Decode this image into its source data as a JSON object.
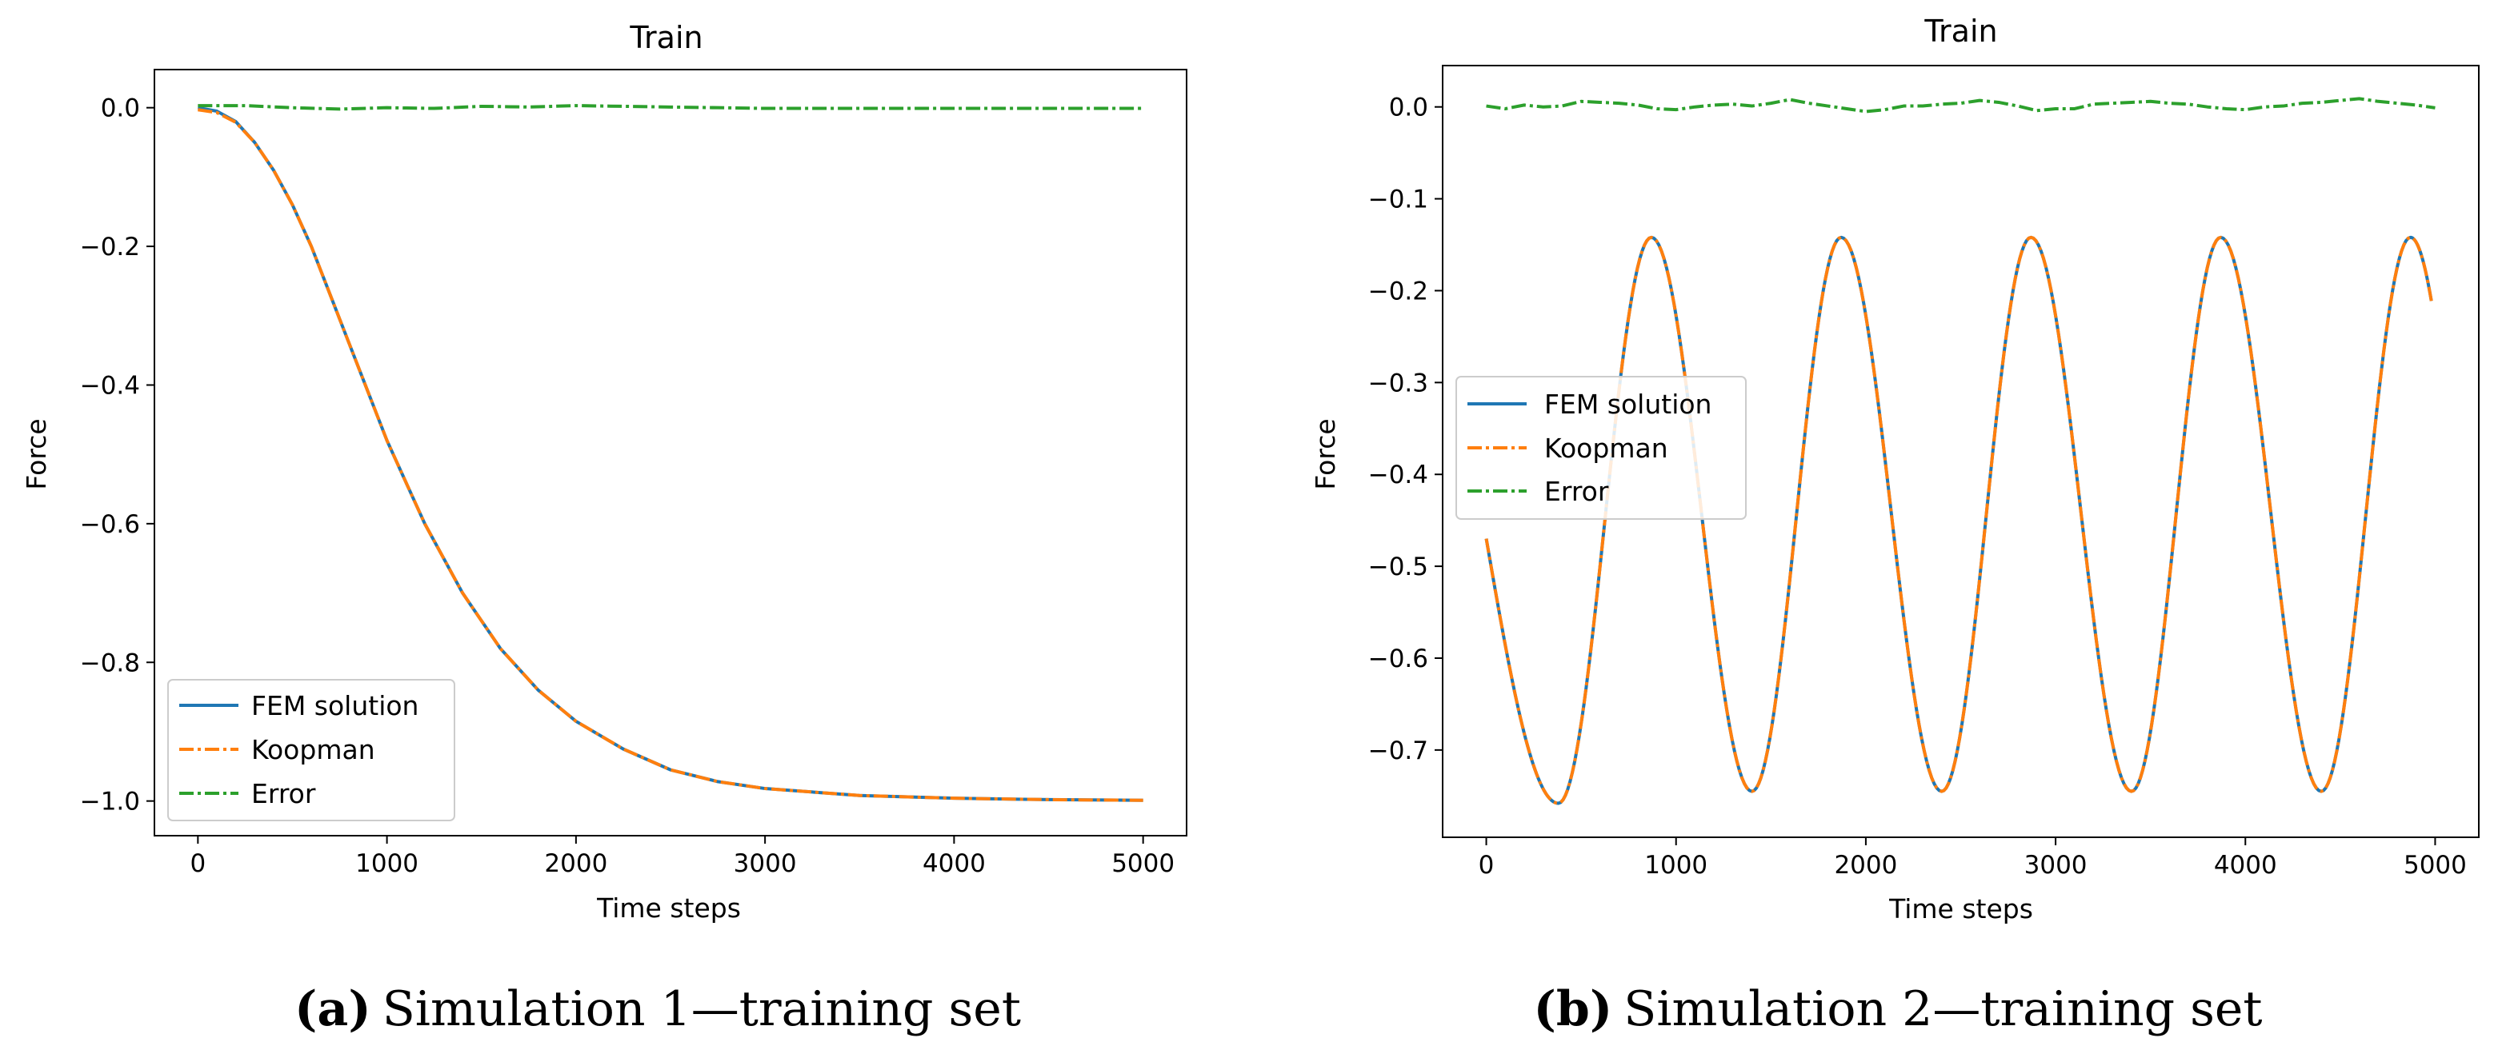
{
  "colors": {
    "fem": "#1f77b4",
    "koopman": "#ff7f0e",
    "error": "#2ca02c"
  },
  "chart_data": [
    {
      "type": "line",
      "title": "Train",
      "xlabel": "Time steps",
      "ylabel": "Force",
      "xlim": [
        -230,
        5230
      ],
      "ylim": [
        -1.05,
        0.055
      ],
      "xticks": [
        0,
        1000,
        2000,
        3000,
        4000,
        5000
      ],
      "xtick_labels": [
        "0",
        "1000",
        "2000",
        "3000",
        "4000",
        "5000"
      ],
      "yticks": [
        0.0,
        -0.2,
        -0.4,
        -0.6,
        -0.8,
        -1.0
      ],
      "ytick_labels": [
        "0.0",
        "−0.2",
        "−0.4",
        "−0.6",
        "−0.8",
        "−1.0"
      ],
      "legend": {
        "placement": "lower-left",
        "entries": [
          "FEM solution",
          "Koopman",
          "Error"
        ]
      },
      "series": [
        {
          "name": "FEM solution",
          "style": "solid",
          "x": [
            0,
            100,
            200,
            300,
            400,
            500,
            600,
            700,
            800,
            900,
            1000,
            1200,
            1400,
            1600,
            1800,
            2000,
            2250,
            2500,
            2750,
            3000,
            3500,
            4000,
            4500,
            5000
          ],
          "y": [
            0.0,
            -0.005,
            -0.02,
            -0.05,
            -0.09,
            -0.14,
            -0.2,
            -0.27,
            -0.34,
            -0.41,
            -0.48,
            -0.6,
            -0.7,
            -0.78,
            -0.84,
            -0.885,
            -0.925,
            -0.955,
            -0.972,
            -0.982,
            -0.992,
            -0.996,
            -0.998,
            -0.999
          ]
        },
        {
          "name": "Koopman",
          "style": "dashdot",
          "x": [
            0,
            100,
            200,
            300,
            400,
            500,
            600,
            700,
            800,
            900,
            1000,
            1200,
            1400,
            1600,
            1800,
            2000,
            2250,
            2500,
            2750,
            3000,
            3500,
            4000,
            4500,
            5000
          ],
          "y": [
            -0.003,
            -0.007,
            -0.021,
            -0.05,
            -0.09,
            -0.14,
            -0.2,
            -0.27,
            -0.34,
            -0.41,
            -0.48,
            -0.6,
            -0.7,
            -0.78,
            -0.84,
            -0.885,
            -0.925,
            -0.955,
            -0.972,
            -0.982,
            -0.992,
            -0.996,
            -0.998,
            -0.999
          ]
        },
        {
          "name": "Error",
          "style": "dashdot",
          "x": [
            0,
            250,
            500,
            750,
            1000,
            1250,
            1500,
            1750,
            2000,
            2250,
            2500,
            2750,
            3000,
            3500,
            4000,
            4500,
            5000
          ],
          "y": [
            0.003,
            0.003,
            0.0,
            -0.002,
            0.0,
            -0.001,
            0.002,
            0.001,
            0.003,
            0.002,
            0.001,
            0.0,
            -0.001,
            -0.001,
            -0.001,
            -0.001,
            -0.001
          ]
        }
      ],
      "caption": {
        "letter": "(a)",
        "text": "Simulation 1—training set"
      }
    },
    {
      "type": "line",
      "title": "Train",
      "xlabel": "Time steps",
      "ylabel": "Force",
      "xlim": [
        -230,
        5230
      ],
      "ylim": [
        -0.795,
        0.045
      ],
      "xticks": [
        0,
        1000,
        2000,
        3000,
        4000,
        5000
      ],
      "xtick_labels": [
        "0",
        "1000",
        "2000",
        "3000",
        "4000",
        "5000"
      ],
      "yticks": [
        0.0,
        -0.1,
        -0.2,
        -0.3,
        -0.4,
        -0.5,
        -0.6,
        -0.7
      ],
      "ytick_labels": [
        "0.0",
        "−0.1",
        "−0.2",
        "−0.3",
        "−0.4",
        "−0.5",
        "−0.6",
        "−0.7"
      ],
      "legend": {
        "placement": "center-left",
        "entries": [
          "FEM solution",
          "Koopman",
          "Error"
        ]
      },
      "series": [
        {
          "name": "FEM solution",
          "style": "solid",
          "generator": "oscillation",
          "params": {
            "start": -0.47,
            "first_min": -0.758,
            "first_min_x": 380,
            "first_peak_x": 870,
            "period": 1000,
            "max": -0.142,
            "min": -0.745,
            "end_x": 4980
          }
        },
        {
          "name": "Koopman",
          "style": "dashdot",
          "generator": "oscillation",
          "params": {
            "start": -0.47,
            "first_min": -0.758,
            "first_min_x": 380,
            "first_peak_x": 870,
            "period": 1000,
            "max": -0.142,
            "min": -0.745,
            "end_x": 4980
          }
        },
        {
          "name": "Error",
          "style": "dashdot",
          "x": [
            0,
            100,
            200,
            300,
            400,
            500,
            600,
            700,
            800,
            900,
            1000,
            1100,
            1200,
            1300,
            1400,
            1500,
            1600,
            1700,
            1800,
            1900,
            2000,
            2100,
            2200,
            2300,
            2400,
            2500,
            2600,
            2700,
            2800,
            2900,
            3000,
            3100,
            3200,
            3300,
            3400,
            3500,
            3600,
            3700,
            3800,
            3900,
            4000,
            4100,
            4200,
            4300,
            4400,
            4500,
            4600,
            4700,
            4800,
            4900,
            5000
          ],
          "y": [
            0.001,
            -0.002,
            0.002,
            0.0,
            0.001,
            0.006,
            0.005,
            0.004,
            0.002,
            -0.002,
            -0.003,
            0.0,
            0.002,
            0.003,
            0.001,
            0.004,
            0.008,
            0.004,
            0.001,
            -0.002,
            -0.005,
            -0.003,
            0.001,
            0.001,
            0.003,
            0.004,
            0.007,
            0.005,
            0.001,
            -0.004,
            -0.002,
            -0.002,
            0.003,
            0.004,
            0.005,
            0.006,
            0.004,
            0.003,
            0.0,
            -0.002,
            -0.003,
            0.0,
            0.001,
            0.004,
            0.005,
            0.007,
            0.009,
            0.006,
            0.004,
            0.002,
            -0.001
          ]
        }
      ],
      "caption": {
        "letter": "(b)",
        "text": "Simulation 2—training set"
      }
    }
  ]
}
